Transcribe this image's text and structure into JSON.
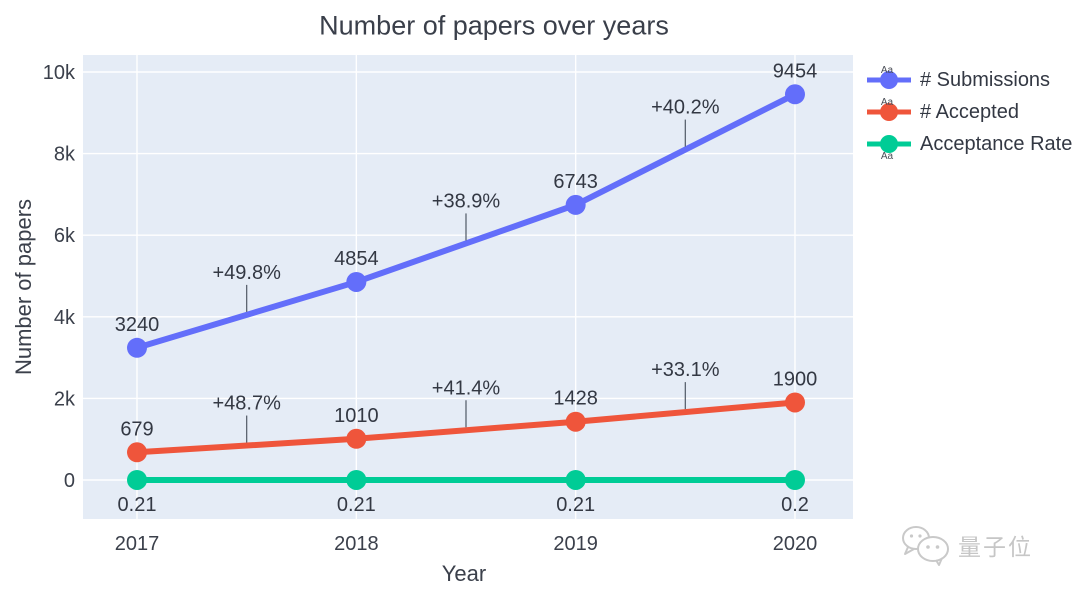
{
  "chart_data": {
    "type": "line",
    "title": "Number of papers over years",
    "xlabel": "Year",
    "ylabel": "Number of papers",
    "x_categories": [
      "2017",
      "2018",
      "2019",
      "2020"
    ],
    "yticks": [
      {
        "label": "0",
        "value": 0
      },
      {
        "label": "2k",
        "value": 2000
      },
      {
        "label": "4k",
        "value": 4000
      },
      {
        "label": "6k",
        "value": 6000
      },
      {
        "label": "8k",
        "value": 8000
      },
      {
        "label": "10k",
        "value": 10000
      }
    ],
    "ylim": [
      0,
      10000
    ],
    "grid": true,
    "legend": {
      "position": "top-right",
      "sample_text": "Aa"
    },
    "series": [
      {
        "name": "# Submissions",
        "color": "#636EFA",
        "values": [
          3240,
          4854,
          6743,
          9454
        ],
        "point_labels": [
          "3240",
          "4854",
          "6743",
          "9454"
        ],
        "label_position": "top"
      },
      {
        "name": "# Accepted",
        "color": "#EF553B",
        "values": [
          679,
          1010,
          1428,
          1900
        ],
        "point_labels": [
          "679",
          "1010",
          "1428",
          "1900"
        ],
        "label_position": "top"
      },
      {
        "name": "Acceptance Rate",
        "color": "#00CC96",
        "values": [
          0.21,
          0.21,
          0.21,
          0.2
        ],
        "point_labels": [
          "0.21",
          "0.21",
          "0.21",
          "0.2"
        ],
        "label_position": "bottom"
      }
    ],
    "annotations": [
      {
        "text": "+49.8%",
        "series": 0,
        "segment": 0
      },
      {
        "text": "+38.9%",
        "series": 0,
        "segment": 1
      },
      {
        "text": "+40.2%",
        "series": 0,
        "segment": 2
      },
      {
        "text": "+48.7%",
        "series": 1,
        "segment": 0
      },
      {
        "text": "+41.4%",
        "series": 1,
        "segment": 1
      },
      {
        "text": "+33.1%",
        "series": 1,
        "segment": 2
      }
    ],
    "colors": {
      "plot_bg": "#E5ECF6",
      "grid": "#FFFFFF",
      "text": "#3B404B",
      "annotation_line": "#5B6470"
    }
  },
  "watermark": {
    "text": "量子位",
    "icon": "wechat-logo"
  }
}
